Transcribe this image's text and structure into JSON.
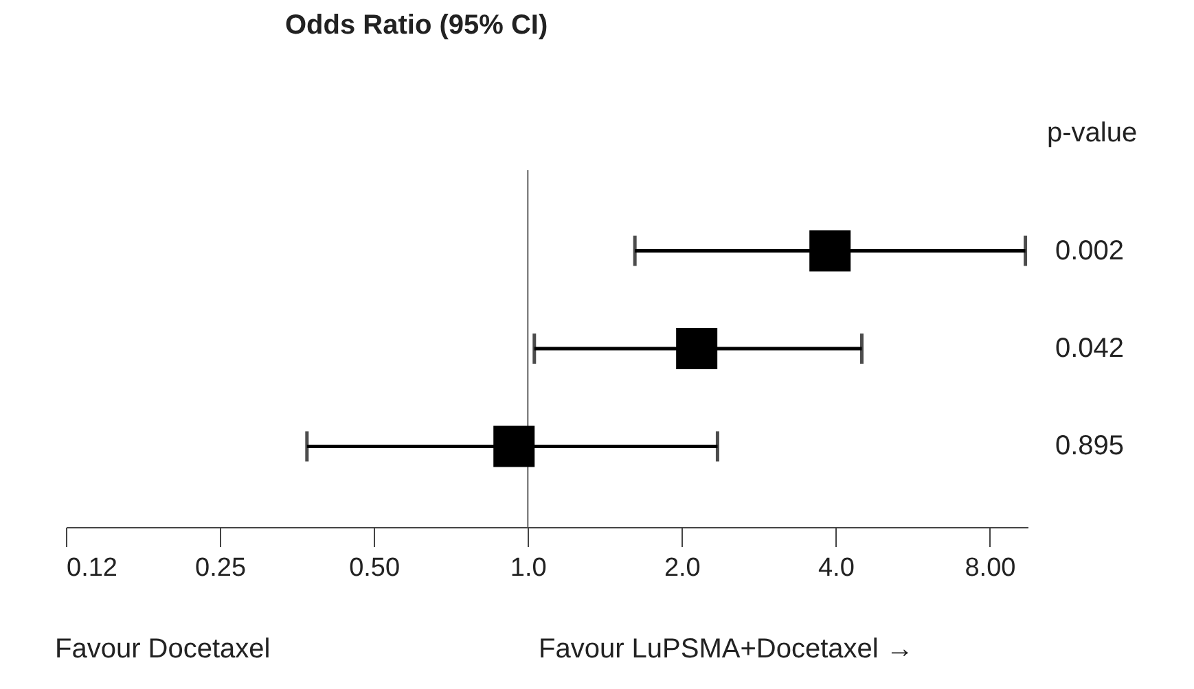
{
  "chart_data": {
    "type": "scatter",
    "orientation": "horizontal",
    "title": "Odds Ratio (95% CI)",
    "categories": [
      null,
      null,
      null
    ],
    "values": [
      3.9,
      2.14,
      0.94
    ],
    "errors": [
      [
        1.62,
        9.4
      ],
      [
        1.03,
        4.5
      ],
      [
        0.37,
        2.35
      ]
    ],
    "color": "#000000",
    "marker": "square",
    "log": "x",
    "xlim": [
      0.125,
      9.5
    ],
    "xticks": [
      {
        "value": 0.125,
        "label": "0.12"
      },
      0.25,
      {
        "value": 0.5,
        "label": "0.50"
      },
      {
        "value": 1,
        "label": "1.0"
      },
      {
        "value": 2,
        "label": "2.0"
      },
      {
        "value": 4,
        "label": "4.0"
      },
      {
        "value": 8,
        "label": "8.00"
      }
    ],
    "ref_lines": [
      {
        "axis": "x",
        "value": 1,
        "color": "#808080"
      }
    ],
    "annotations": [
      "p-value",
      "0.002",
      "0.042",
      "0.895",
      "Favour Docetaxel",
      "Favour LuPSMA+Docetaxel →"
    ],
    "tick_labels": "x",
    "grid": false
  }
}
